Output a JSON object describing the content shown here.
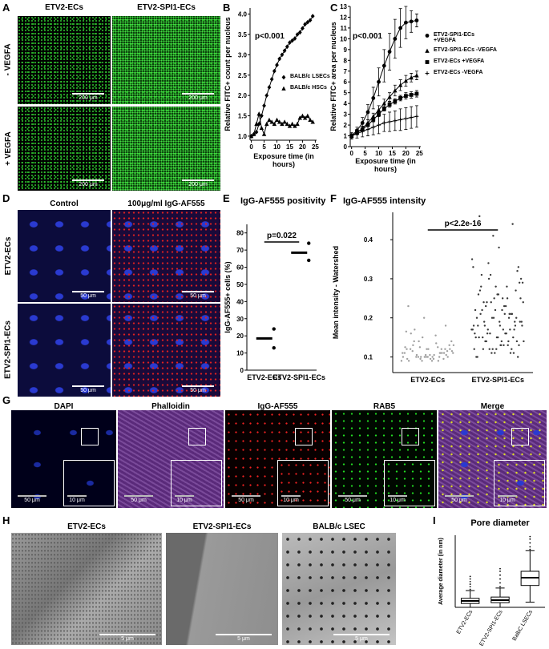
{
  "panels": [
    {
      "label": "A",
      "columns": [
        "ETV2-ECs",
        "ETV2-SPI1-ECs"
      ],
      "rows": [
        "- VEGFA",
        "+ VEGFA"
      ],
      "scale_bars": [
        "200 μm",
        "200 μm",
        "200 μm",
        "200 μm"
      ]
    },
    {
      "label": "B"
    },
    {
      "label": "C"
    },
    {
      "label": "D",
      "columns": [
        "Control",
        "100μg/ml IgG-AF555"
      ],
      "rows": [
        "ETV2-ECs",
        "ETV2-SPI1-ECs"
      ],
      "scale_bars": [
        "50 μm",
        "50 μm",
        "50 μm",
        "50 μm"
      ]
    },
    {
      "label": "E"
    },
    {
      "label": "F"
    },
    {
      "label": "G",
      "columns": [
        "DAPI",
        "Phalloidin",
        "IgG-AF555",
        "RAB5",
        "Merge"
      ],
      "scale_bars": [
        "50 μm",
        "10 μm",
        "50 μm",
        "10 μm",
        "50 μm",
        "10 μm",
        "50 μm",
        "10 μm",
        "50 μm",
        "10 μm"
      ]
    },
    {
      "label": "H",
      "columns": [
        "ETV2-ECs",
        "ETV2-SPI1-ECs",
        "BALB/c LSEC"
      ],
      "scale_bars": [
        "5 μm",
        "5 μm",
        "5 μm"
      ]
    },
    {
      "label": "I"
    }
  ],
  "chart_data": [
    {
      "type": "line",
      "ylabel": "Relative FITC+ count per nucleus",
      "xlabel": "Exposure time (in hours)",
      "annotation": "p<0.001",
      "x": [
        0,
        1,
        2,
        3,
        4,
        5,
        6,
        7,
        8,
        9,
        10,
        11,
        12,
        13,
        14,
        15,
        16,
        17,
        18,
        19,
        20,
        21,
        22,
        23,
        24
      ],
      "xlim": [
        -0.5,
        25.5
      ],
      "xticks": [
        0,
        5,
        10,
        15,
        20,
        25
      ],
      "ylim": [
        0.9,
        4.15
      ],
      "yticks": [
        {
          "value": 1,
          "label": "1.0"
        },
        1.5,
        {
          "value": 2,
          "label": "2.0"
        },
        2.5,
        {
          "value": 3,
          "label": "3.0"
        },
        3.5,
        {
          "value": 4,
          "label": "4.0"
        }
      ],
      "series": [
        {
          "name": "BALB/c LSECs",
          "marker": "diamond",
          "color": "#000000",
          "values": [
            1.0,
            1.05,
            1.1,
            1.3,
            1.5,
            1.75,
            2.0,
            2.2,
            2.4,
            2.6,
            2.75,
            2.9,
            3.0,
            3.1,
            3.2,
            3.3,
            3.35,
            3.4,
            3.5,
            3.55,
            3.65,
            3.75,
            3.8,
            3.85,
            3.95
          ]
        },
        {
          "name": "BALB/c HSCs",
          "marker": "triangle",
          "color": "#000000",
          "values": [
            1.0,
            1.05,
            1.3,
            1.55,
            1.2,
            1.05,
            1.3,
            1.4,
            1.35,
            1.3,
            1.4,
            1.35,
            1.3,
            1.35,
            1.3,
            1.25,
            1.3,
            1.25,
            1.3,
            1.45,
            1.5,
            1.45,
            1.5,
            1.4,
            1.35
          ]
        }
      ]
    },
    {
      "type": "line",
      "ylabel": "Relative FITC+ area per nucleus",
      "xlabel": "Exposure time (in hours)",
      "annotation": "p<0.001",
      "x": [
        0,
        2,
        4,
        6,
        8,
        10,
        12,
        14,
        16,
        18,
        20,
        22,
        24
      ],
      "xlim": [
        -0.5,
        25.5
      ],
      "xticks": [
        0,
        5,
        10,
        15,
        20,
        25
      ],
      "ylim": [
        0,
        13
      ],
      "yticks": [
        0,
        1,
        2,
        3,
        4,
        5,
        6,
        7,
        8,
        9,
        10,
        11,
        12,
        13
      ],
      "series": [
        {
          "name": "ETV2-SPI1-ECs +VEGFA",
          "marker": "circle",
          "color": "#000000",
          "values": [
            1.0,
            1.5,
            2.2,
            3.2,
            4.5,
            6.0,
            7.5,
            8.8,
            10.0,
            11.0,
            11.5,
            11.6,
            11.7
          ],
          "errors": [
            0.2,
            0.3,
            0.5,
            0.7,
            1.0,
            1.3,
            1.5,
            1.7,
            1.8,
            1.8,
            1.5,
            1.0,
            0.6
          ]
        },
        {
          "name": "ETV2-SPI1-ECs -VEGFA",
          "marker": "triangle",
          "color": "#000000",
          "values": [
            1.0,
            1.3,
            1.7,
            2.2,
            2.8,
            3.4,
            4.0,
            4.6,
            5.2,
            5.7,
            6.1,
            6.4,
            6.6
          ],
          "errors": [
            0.1,
            0.2,
            0.2,
            0.3,
            0.3,
            0.4,
            0.4,
            0.4,
            0.5,
            0.5,
            0.5,
            0.4,
            0.4
          ]
        },
        {
          "name": "ETV2-ECs +VEGFA",
          "marker": "square",
          "color": "#000000",
          "values": [
            1.0,
            1.3,
            1.6,
            2.0,
            2.5,
            3.0,
            3.5,
            3.9,
            4.2,
            4.5,
            4.7,
            4.8,
            4.9
          ],
          "errors": [
            0.1,
            0.1,
            0.15,
            0.15,
            0.2,
            0.2,
            0.2,
            0.25,
            0.25,
            0.25,
            0.3,
            0.3,
            0.3
          ]
        },
        {
          "name": "ETV2-ECs -VEGFA",
          "marker": "plus",
          "color": "#000000",
          "values": [
            1.0,
            1.2,
            1.4,
            1.6,
            1.8,
            2.0,
            2.2,
            2.3,
            2.4,
            2.5,
            2.6,
            2.7,
            2.8
          ],
          "errors": [
            0.3,
            0.4,
            0.5,
            0.6,
            0.7,
            0.8,
            0.8,
            0.9,
            0.9,
            1.0,
            1.0,
            1.0,
            1.0
          ]
        }
      ]
    },
    {
      "type": "dot",
      "title": "IgG-AF555 positivity",
      "ylabel": "IgG-AF555+ cells (%)",
      "annotation": "p=0.022",
      "categories": [
        "ETV2-ECs",
        "ETV2-SPI1-ECs"
      ],
      "points": [
        [
          24,
          13
        ],
        [
          74,
          64
        ]
      ],
      "means": [
        18.5,
        68.5
      ],
      "ylim": [
        0,
        85
      ],
      "yticks": [
        0,
        10,
        20,
        30,
        40,
        50,
        60,
        70,
        80
      ]
    },
    {
      "type": "jitter",
      "title": "IgG-AF555 intensity",
      "ylabel": "Mean intensity - Watershed",
      "annotation": "p<2.2e-16",
      "categories": [
        "ETV2-ECs",
        "ETV2-SPI1-ECs"
      ],
      "colors": [
        "#a0a0a0",
        "#3a3a3a"
      ],
      "ylim": [
        0.06,
        0.47
      ],
      "yticks": [
        0.1,
        0.2,
        0.3,
        0.4
      ],
      "values": [
        [
          0.09,
          0.1,
          0.11,
          0.095,
          0.12,
          0.105,
          0.13,
          0.1,
          0.115,
          0.14,
          0.09,
          0.125,
          0.1,
          0.11,
          0.16,
          0.095,
          0.12,
          0.105,
          0.135,
          0.1,
          0.15,
          0.11,
          0.09,
          0.12,
          0.1,
          0.17,
          0.105,
          0.13,
          0.095,
          0.11,
          0.12,
          0.1,
          0.18,
          0.115,
          0.09,
          0.14,
          0.1,
          0.125,
          0.11,
          0.2,
          0.095,
          0.12,
          0.105,
          0.13,
          0.1,
          0.155,
          0.11,
          0.09,
          0.12,
          0.23,
          0.1,
          0.115,
          0.14,
          0.095,
          0.11,
          0.125,
          0.1,
          0.165,
          0.105,
          0.12
        ],
        [
          0.1,
          0.15,
          0.2,
          0.12,
          0.25,
          0.18,
          0.3,
          0.14,
          0.22,
          0.11,
          0.17,
          0.28,
          0.13,
          0.19,
          0.24,
          0.16,
          0.33,
          0.12,
          0.21,
          0.15,
          0.26,
          0.1,
          0.18,
          0.23,
          0.14,
          0.31,
          0.17,
          0.2,
          0.12,
          0.27,
          0.15,
          0.22,
          0.19,
          0.34,
          0.13,
          0.16,
          0.25,
          0.11,
          0.21,
          0.18,
          0.29,
          0.14,
          0.23,
          0.17,
          0.2,
          0.12,
          0.26,
          0.15,
          0.32,
          0.19,
          0.13,
          0.24,
          0.16,
          0.21,
          0.1,
          0.28,
          0.18,
          0.22,
          0.14,
          0.3,
          0.17,
          0.25,
          0.12,
          0.2,
          0.15,
          0.27,
          0.19,
          0.13,
          0.23,
          0.16,
          0.35,
          0.11,
          0.21,
          0.18,
          0.26,
          0.14,
          0.24,
          0.17,
          0.29,
          0.12,
          0.2,
          0.15,
          0.22,
          0.19,
          0.31,
          0.13,
          0.25,
          0.16,
          0.28,
          0.18,
          0.41,
          0.44,
          0.46,
          0.38,
          0.33,
          0.14,
          0.21,
          0.17,
          0.24,
          0.11
        ]
      ]
    },
    {
      "type": "box",
      "title": "Pore diameter",
      "ylabel": "Average diameter (in nm)",
      "categories": [
        "ETV2-ECs",
        "ETV2-SPI1-ECs",
        "BalbC LSECs"
      ],
      "ylim": [
        0,
        280
      ],
      "boxes": [
        {
          "whisker_low": 0,
          "q1": 15,
          "median": 25,
          "q3": 35,
          "whisker_high": 65,
          "outliers": [
            70,
            80,
            90,
            100,
            110,
            120
          ]
        },
        {
          "whisker_low": 0,
          "q1": 18,
          "median": 28,
          "q3": 40,
          "whisker_high": 75,
          "outliers": [
            80,
            95,
            110,
            125,
            140,
            150
          ]
        },
        {
          "whisker_low": 20,
          "q1": 85,
          "median": 115,
          "q3": 140,
          "whisker_high": 220,
          "outliers": [
            225,
            235,
            250,
            265,
            275
          ]
        }
      ]
    }
  ]
}
